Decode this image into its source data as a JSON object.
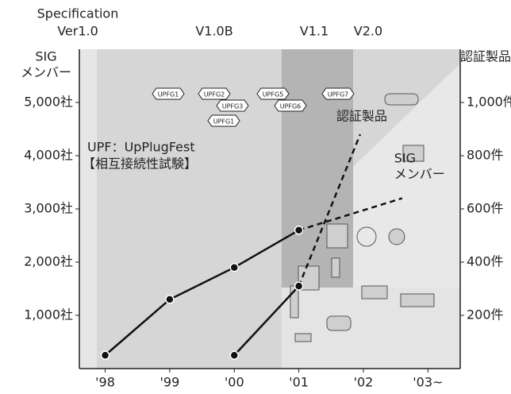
{
  "chart_data": {
    "type": "line",
    "y_axis_title": [
      "SIG",
      "メンバー"
    ],
    "y2_axis_title": [
      "認証製品"
    ],
    "versions": [
      [
        "Specification",
        "Ver1.0"
      ],
      [
        "V1.0B"
      ],
      [
        "V1.1"
      ],
      [
        "V2.0"
      ]
    ],
    "upf_events": [
      "UPFG1",
      "UPFG2",
      "UPFG3",
      "UPFG1",
      "UPFG5",
      "UPFG6",
      "UPFG7"
    ],
    "annotation": [
      "UPF：UpPlugFest",
      "【相互接続性試験】"
    ],
    "xlim": [
      1997.6,
      2003.5
    ],
    "xticks": [
      {
        "value": 1998,
        "label": "'98"
      },
      {
        "value": 1999,
        "label": "'99"
      },
      {
        "value": 2000,
        "label": "'00"
      },
      {
        "value": 2001,
        "label": "'01"
      },
      {
        "value": 2002,
        "label": "'02"
      },
      {
        "value": 2003,
        "label": "'03~"
      }
    ],
    "ylim": [
      0,
      6000
    ],
    "yticks": [
      {
        "value": 1000,
        "label": "1,000社"
      },
      {
        "value": 2000,
        "label": "2,000社"
      },
      {
        "value": 3000,
        "label": "3,000社"
      },
      {
        "value": 4000,
        "label": "4,000社"
      },
      {
        "value": 5000,
        "label": "5,000社"
      }
    ],
    "y2lim": [
      0,
      1200
    ],
    "y2ticks": [
      {
        "value": 200,
        "label": "200件"
      },
      {
        "value": 400,
        "label": "400件"
      },
      {
        "value": 600,
        "label": "600件"
      },
      {
        "value": 800,
        "label": "800件"
      },
      {
        "value": 1000,
        "label": "1,000件"
      }
    ],
    "series": [
      {
        "name": "SIG メンバー",
        "color": "#111111",
        "x": [
          1998,
          1999,
          2000,
          2001,
          2002.6
        ],
        "values": [
          250,
          1300,
          1900,
          2600,
          3200
        ],
        "dash_from": 3
      },
      {
        "name": "認証製品",
        "color": "#111111",
        "axis": "y2",
        "x": [
          2000,
          2001,
          2001.95
        ],
        "values": [
          50,
          310,
          880
        ],
        "dash_from": 1
      }
    ]
  }
}
